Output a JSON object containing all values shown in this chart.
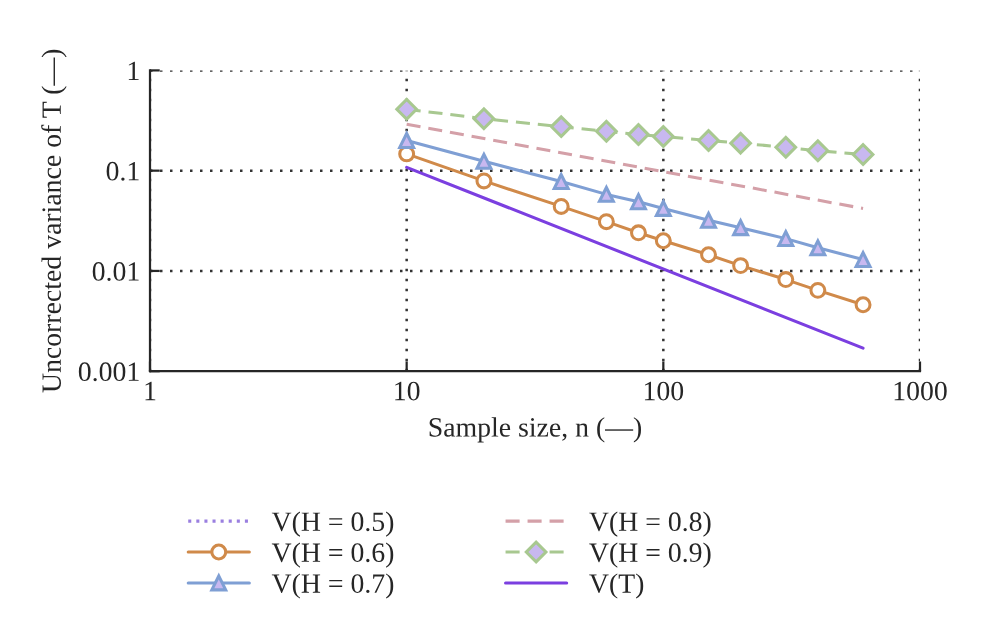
{
  "chart_data": {
    "type": "line",
    "xlabel": "Sample size, n (—)",
    "ylabel": "Uncorrected variance of T (—)",
    "log": "xy",
    "xlim": [
      1,
      1000
    ],
    "ylim": [
      0.001,
      1
    ],
    "xticks": [
      1,
      10,
      100,
      1000
    ],
    "yticks": [
      0.001,
      0.01,
      0.1,
      1
    ],
    "grid": true,
    "legend": "bottom",
    "series": [
      {
        "name": "V(H = 0.5)",
        "color": "#9a7fe0",
        "line_style": "dotted",
        "marker": "none"
      },
      {
        "name": "V(H = 0.6)",
        "color": "#d08a4a",
        "line_style": "solid",
        "marker": "circle",
        "x": [
          10,
          20,
          40,
          60,
          80,
          100,
          150,
          200,
          300,
          400,
          600
        ],
        "values": [
          0.147,
          0.079,
          0.044,
          0.031,
          0.024,
          0.02,
          0.0145,
          0.0113,
          0.0082,
          0.0064,
          0.0046
        ]
      },
      {
        "name": "V(H = 0.7)",
        "color": "#7f9fd4",
        "line_style": "solid",
        "marker": "triangle",
        "x": [
          10,
          20,
          40,
          60,
          80,
          100,
          150,
          200,
          300,
          400,
          600
        ],
        "values": [
          0.2,
          0.124,
          0.078,
          0.058,
          0.049,
          0.042,
          0.032,
          0.027,
          0.021,
          0.017,
          0.013
        ]
      },
      {
        "name": "V(H = 0.8)",
        "color": "#d4a0a8",
        "line_style": "dashed",
        "marker": "none",
        "x": [
          10,
          600
        ],
        "values": [
          0.29,
          0.042
        ]
      },
      {
        "name": "V(H = 0.9)",
        "color": "#a8c890",
        "line_style": "dashed",
        "marker": "diamond",
        "x": [
          10,
          20,
          40,
          60,
          80,
          100,
          150,
          200,
          300,
          400,
          600
        ],
        "values": [
          0.41,
          0.33,
          0.275,
          0.247,
          0.229,
          0.219,
          0.2,
          0.188,
          0.171,
          0.158,
          0.145
        ]
      },
      {
        "name": "V(T)",
        "color": "#7b3fe0",
        "line_style": "solid",
        "marker": "none",
        "x": [
          10,
          600
        ],
        "values": [
          0.108,
          0.0017
        ]
      }
    ]
  }
}
